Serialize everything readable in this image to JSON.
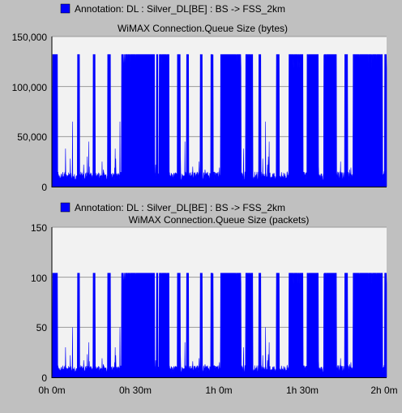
{
  "chart_data": [
    {
      "type": "area",
      "legend_label": "Annotation: DL : Silver_DL[BE] : BS -> FSS_2km",
      "title": "WiMAX Connection.Queue Size (bytes)",
      "series_color": "#0000ff",
      "plot_bg": "#f2f2f2",
      "grid": true,
      "ylim": [
        0,
        150000
      ],
      "yticks": [
        "150,000",
        "100,000",
        "50,000",
        "0"
      ],
      "ytick_values": [
        150000,
        100000,
        50000,
        0
      ],
      "xlim_minutes": [
        0,
        120
      ],
      "saturation_value": 132000,
      "noise_floor_value": 15000,
      "noise_spikes_value": [
        38000,
        28000,
        65000,
        22000,
        30000,
        45000,
        20000,
        25000,
        17000,
        19000
      ],
      "saturated_bursts_minutes": [
        [
          0.3,
          2.0
        ],
        [
          9.2,
          9.9
        ],
        [
          14.8,
          15.5
        ],
        [
          20.0,
          21.0
        ],
        [
          25.0,
          36.8
        ],
        [
          37.5,
          38.0
        ],
        [
          38.5,
          42.0
        ],
        [
          45.0,
          46.0
        ],
        [
          48.3,
          49.0
        ],
        [
          53.2,
          53.9
        ],
        [
          57.0,
          57.8
        ],
        [
          60.5,
          67.8
        ],
        [
          69.5,
          72.0
        ],
        [
          74.2,
          74.9
        ],
        [
          80.5,
          81.5
        ],
        [
          85.0,
          90.0
        ],
        [
          91.5,
          95.5
        ],
        [
          97.5,
          102.0
        ],
        [
          105.0,
          106.0
        ],
        [
          108.0,
          118.5
        ],
        [
          119.3,
          120.0
        ]
      ]
    },
    {
      "type": "area",
      "legend_label": "Annotation: DL : Silver_DL[BE] : BS -> FSS_2km",
      "title": "WiMAX Connection.Queue Size (packets)",
      "series_color": "#0000ff",
      "plot_bg": "#f2f2f2",
      "grid": true,
      "ylim": [
        0,
        150
      ],
      "yticks": [
        "150",
        "100",
        "50",
        "0"
      ],
      "ytick_values": [
        150,
        100,
        50,
        0
      ],
      "xlim_minutes": [
        0,
        120
      ],
      "xticks": [
        "0h 0m",
        "0h 30m",
        "1h 0m",
        "1h 30m",
        "2h 0m"
      ],
      "xtick_minutes": [
        0,
        30,
        60,
        90,
        120
      ],
      "saturation_value": 104,
      "noise_floor_value": 12,
      "noise_spikes_value": [
        30,
        22,
        50,
        17,
        23,
        35,
        16,
        19,
        13,
        15
      ],
      "saturated_bursts_minutes": [
        [
          0.3,
          2.0
        ],
        [
          9.2,
          9.9
        ],
        [
          14.8,
          15.5
        ],
        [
          20.0,
          21.0
        ],
        [
          25.0,
          36.8
        ],
        [
          37.5,
          38.0
        ],
        [
          38.5,
          42.0
        ],
        [
          45.0,
          46.0
        ],
        [
          48.3,
          49.0
        ],
        [
          53.2,
          53.9
        ],
        [
          57.0,
          57.8
        ],
        [
          60.5,
          67.8
        ],
        [
          69.5,
          72.0
        ],
        [
          74.2,
          74.9
        ],
        [
          80.5,
          81.5
        ],
        [
          85.0,
          90.0
        ],
        [
          91.5,
          95.5
        ],
        [
          97.5,
          102.0
        ],
        [
          105.0,
          106.0
        ],
        [
          108.0,
          118.5
        ],
        [
          119.3,
          120.0
        ]
      ]
    }
  ]
}
